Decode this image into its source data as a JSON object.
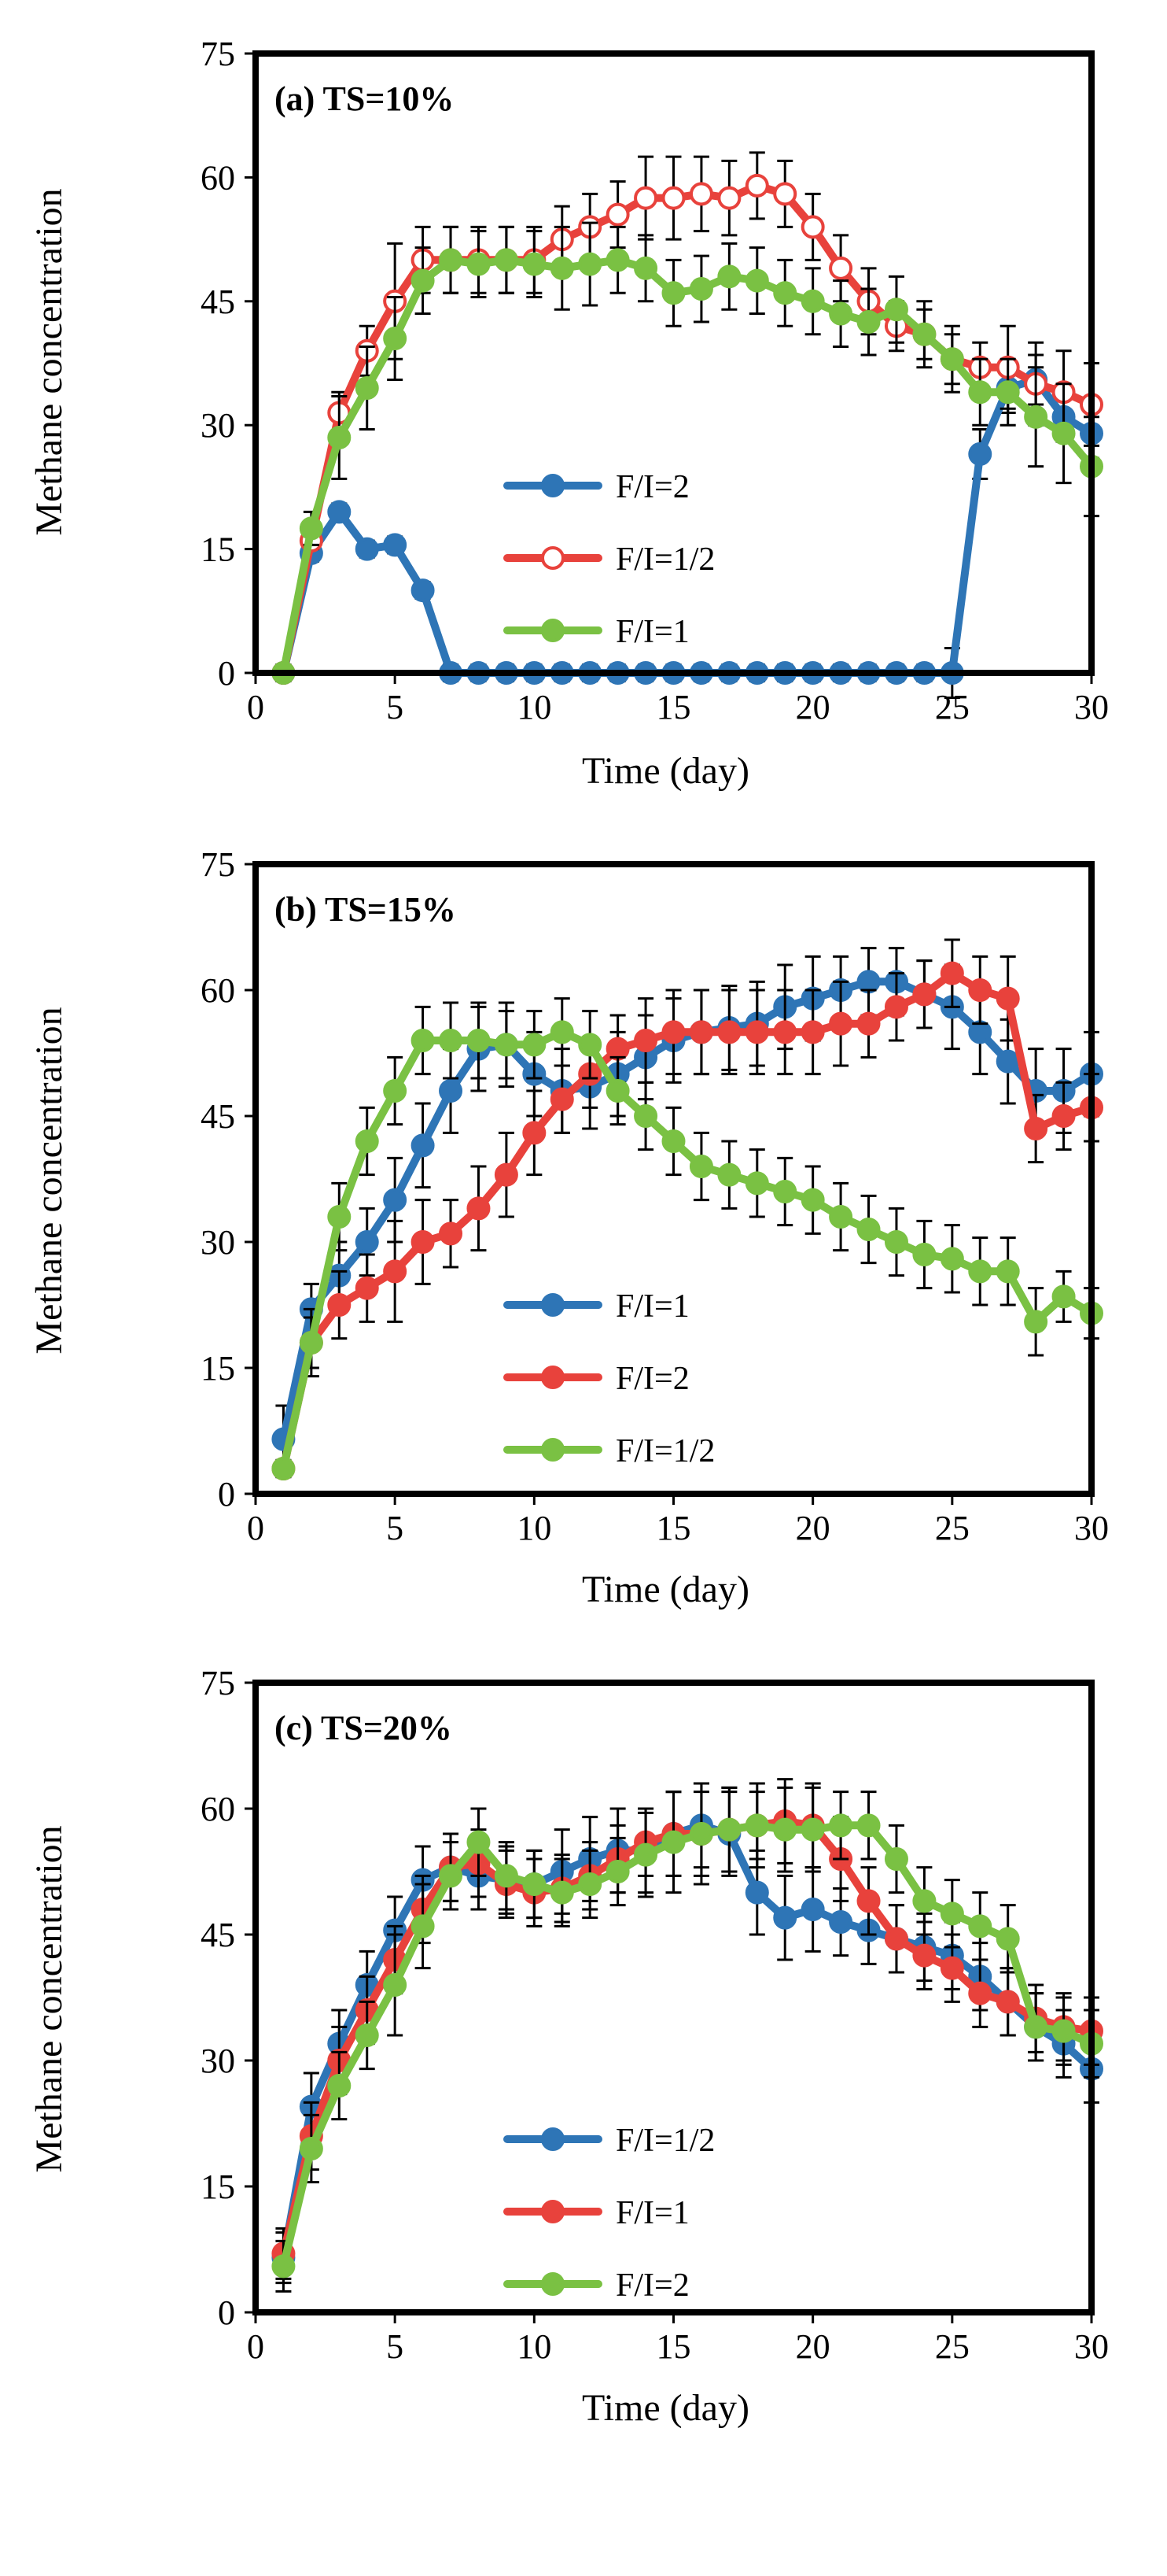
{
  "figure": {
    "ylabel": "Methane concentration",
    "xlabel": "Time (day)"
  },
  "chart_data": [
    {
      "type": "line",
      "title": "(a) TS=10%",
      "xlabel": "Time (day)",
      "ylabel": "Methane concentration",
      "xlim": [
        0,
        30
      ],
      "ylim": [
        0,
        75
      ],
      "xticks": [
        0,
        5,
        10,
        15,
        20,
        25,
        30
      ],
      "yticks": [
        0,
        15,
        30,
        45,
        60,
        75
      ],
      "legend_position": "center",
      "series": [
        {
          "name": "F/I=2",
          "color": "#2e75b6",
          "marker": "filled",
          "x": [
            1,
            2,
            3,
            4,
            5,
            6,
            7,
            8,
            9,
            10,
            11,
            12,
            13,
            14,
            15,
            16,
            17,
            18,
            19,
            20,
            21,
            22,
            23,
            24,
            25,
            26,
            27,
            28,
            29,
            30
          ],
          "values": [
            0,
            14.5,
            19.5,
            15,
            15.5,
            10,
            0,
            0,
            0,
            0,
            0,
            0,
            0,
            0,
            0,
            0,
            0,
            0,
            0,
            0,
            0,
            0,
            0,
            0,
            0,
            26.5,
            34.5,
            35.5,
            31,
            29
          ],
          "errors": [
            1,
            1,
            1,
            1,
            1,
            1,
            1,
            1,
            1,
            1,
            1,
            1,
            1,
            1,
            1,
            1,
            1,
            1,
            1,
            1,
            1,
            1,
            1,
            1,
            3,
            3,
            3,
            3,
            3,
            3
          ]
        },
        {
          "name": "F/I=1/2",
          "color": "#e8423c",
          "marker": "open",
          "x": [
            1,
            2,
            3,
            4,
            5,
            6,
            7,
            8,
            9,
            10,
            11,
            12,
            13,
            14,
            15,
            16,
            17,
            18,
            19,
            20,
            21,
            22,
            23,
            24,
            25,
            26,
            27,
            28,
            29,
            30
          ],
          "values": [
            0,
            16,
            31.5,
            39,
            45,
            50,
            50,
            50,
            50,
            50,
            52.5,
            54,
            55.5,
            57.5,
            57.5,
            58,
            57.5,
            59,
            58,
            54,
            49,
            45,
            42,
            41,
            38,
            37,
            37,
            35,
            34,
            32.5
          ],
          "errors": [
            1,
            1,
            2.5,
            3,
            7,
            4,
            4,
            4,
            4,
            4,
            4,
            4,
            4,
            5,
            5,
            4.5,
            4.5,
            4,
            4,
            4,
            4,
            4,
            3,
            3,
            3,
            3,
            5,
            5,
            5,
            5
          ]
        },
        {
          "name": "F/I=1",
          "color": "#7ac143",
          "marker": "filled",
          "x": [
            1,
            2,
            3,
            4,
            5,
            6,
            7,
            8,
            9,
            10,
            11,
            12,
            13,
            14,
            15,
            16,
            17,
            18,
            19,
            20,
            21,
            22,
            23,
            24,
            25,
            26,
            27,
            28,
            29,
            30
          ],
          "values": [
            0,
            17.5,
            28.5,
            34.5,
            40.5,
            47.5,
            50,
            49.5,
            50,
            49.5,
            49,
            49.5,
            50,
            49,
            46,
            46.5,
            48,
            47.5,
            46,
            45,
            43.5,
            42.5,
            44,
            41,
            38,
            34,
            34,
            31,
            29,
            25
          ],
          "errors": [
            1,
            2,
            5,
            5,
            5,
            4,
            4,
            4,
            4,
            4,
            5,
            5,
            4,
            4,
            4,
            4,
            4,
            4,
            4,
            4,
            4,
            4,
            4,
            4,
            4,
            4,
            4,
            6,
            6,
            6
          ]
        }
      ]
    },
    {
      "type": "line",
      "title": "(b) TS=15%",
      "xlabel": "Time (day)",
      "ylabel": "Methane concentration",
      "xlim": [
        0,
        30
      ],
      "ylim": [
        0,
        75
      ],
      "xticks": [
        0,
        5,
        10,
        15,
        20,
        25,
        30
      ],
      "yticks": [
        0,
        15,
        30,
        45,
        60,
        75
      ],
      "legend_position": "center",
      "series": [
        {
          "name": "F/I=1",
          "color": "#2e75b6",
          "marker": "filled",
          "x": [
            1,
            2,
            3,
            4,
            5,
            6,
            7,
            8,
            9,
            10,
            11,
            12,
            13,
            14,
            15,
            16,
            17,
            18,
            19,
            20,
            21,
            22,
            23,
            24,
            25,
            26,
            27,
            28,
            29,
            30
          ],
          "values": [
            6.5,
            22,
            26,
            30,
            35,
            41.5,
            48,
            53,
            53.5,
            50,
            48,
            48.5,
            50,
            52,
            54,
            55,
            55.5,
            56,
            58,
            59,
            60,
            61,
            61,
            59.5,
            58,
            55,
            51.5,
            48,
            48,
            50
          ],
          "errors": [
            4,
            3,
            4,
            4,
            5,
            5,
            5,
            5,
            5,
            5,
            5,
            5,
            5,
            5,
            5,
            5,
            5,
            5,
            5,
            5,
            4,
            4,
            4,
            4,
            5,
            5,
            5,
            5,
            5,
            5
          ]
        },
        {
          "name": "F/I=2",
          "color": "#e8423c",
          "marker": "filled",
          "x": [
            1,
            2,
            3,
            4,
            5,
            6,
            7,
            8,
            9,
            10,
            11,
            12,
            13,
            14,
            15,
            16,
            17,
            18,
            19,
            20,
            21,
            22,
            23,
            24,
            25,
            26,
            27,
            28,
            29,
            30
          ],
          "values": [
            3,
            18,
            22.5,
            24.5,
            26.5,
            30,
            31,
            34,
            38,
            43,
            47,
            50,
            53,
            54,
            55,
            55,
            55,
            55,
            55,
            55,
            56,
            56,
            58,
            59.5,
            62,
            60,
            59,
            43.5,
            45,
            46
          ],
          "errors": [
            1,
            4,
            4,
            4,
            6,
            5,
            4,
            5,
            5,
            5,
            4,
            4,
            4,
            5,
            5,
            5,
            5,
            5,
            5,
            5,
            5,
            4,
            4,
            4,
            4,
            4,
            5,
            4,
            4,
            4
          ]
        },
        {
          "name": "F/I=1/2",
          "color": "#7ac143",
          "marker": "filled",
          "x": [
            1,
            2,
            3,
            4,
            5,
            6,
            7,
            8,
            9,
            10,
            11,
            12,
            13,
            14,
            15,
            16,
            17,
            18,
            19,
            20,
            21,
            22,
            23,
            24,
            25,
            26,
            27,
            28,
            29,
            30
          ],
          "values": [
            3,
            18,
            33,
            42,
            48,
            54,
            54,
            54,
            53.5,
            53.5,
            55,
            53.5,
            48,
            45,
            42,
            39,
            38,
            37,
            36,
            35,
            33,
            31.5,
            30,
            28.5,
            28,
            26.5,
            26.5,
            20.5,
            23.5,
            21.5
          ],
          "errors": [
            1,
            3,
            4,
            4,
            4,
            4,
            4.5,
            4.5,
            4,
            4,
            4,
            4,
            4,
            4,
            4,
            4,
            4,
            4,
            4,
            4,
            4,
            4,
            4,
            4,
            4,
            4,
            4,
            4,
            3,
            3
          ]
        }
      ]
    },
    {
      "type": "line",
      "title": "(c) TS=20%",
      "xlabel": "Time (day)",
      "ylabel": "Methane concentration",
      "xlim": [
        0,
        30
      ],
      "ylim": [
        0,
        75
      ],
      "xticks": [
        0,
        5,
        10,
        15,
        20,
        25,
        30
      ],
      "yticks": [
        0,
        15,
        30,
        45,
        60,
        75
      ],
      "legend_position": "bottom-center",
      "series": [
        {
          "name": "F/I=1/2",
          "color": "#2e75b6",
          "marker": "filled",
          "x": [
            1,
            2,
            3,
            4,
            5,
            6,
            7,
            8,
            9,
            10,
            11,
            12,
            13,
            14,
            15,
            16,
            17,
            18,
            19,
            20,
            21,
            22,
            23,
            24,
            25,
            26,
            27,
            28,
            29,
            30
          ],
          "values": [
            6.5,
            24.5,
            32,
            39,
            45.5,
            51.5,
            53,
            52,
            51.5,
            51,
            52.5,
            54,
            55,
            55,
            57,
            58,
            57,
            50,
            47,
            48,
            46.5,
            45.5,
            44.5,
            43.5,
            42.5,
            40,
            37,
            34,
            32,
            29
          ],
          "errors": [
            3,
            4,
            4,
            4,
            4,
            4,
            4,
            4,
            4,
            4,
            5,
            5,
            5,
            5,
            5,
            5,
            5,
            5,
            5,
            5,
            4,
            4,
            4,
            4,
            4,
            4,
            4,
            4,
            4,
            4
          ]
        },
        {
          "name": "F/I=1",
          "color": "#e8423c",
          "marker": "filled",
          "x": [
            1,
            2,
            3,
            4,
            5,
            6,
            7,
            8,
            9,
            10,
            11,
            12,
            13,
            14,
            15,
            16,
            17,
            18,
            19,
            20,
            21,
            22,
            23,
            24,
            25,
            26,
            27,
            28,
            29,
            30
          ],
          "values": [
            7,
            21,
            30,
            36,
            42,
            48,
            53,
            53.5,
            51,
            50,
            50.5,
            52,
            54,
            56,
            57,
            57,
            57.5,
            58,
            58.5,
            58,
            54,
            49,
            44.5,
            42.5,
            41,
            38,
            37,
            35,
            34,
            33.5
          ],
          "errors": [
            3,
            4,
            4,
            4,
            4,
            4,
            4,
            4,
            4,
            4,
            4,
            4,
            4,
            4,
            5,
            5,
            5,
            5,
            5,
            5,
            5,
            4,
            4,
            4,
            4,
            4,
            4,
            4,
            4,
            4
          ]
        },
        {
          "name": "F/I=2",
          "color": "#7ac143",
          "marker": "filled",
          "x": [
            1,
            2,
            3,
            4,
            5,
            6,
            7,
            8,
            9,
            10,
            11,
            12,
            13,
            14,
            15,
            16,
            17,
            18,
            19,
            20,
            21,
            22,
            23,
            24,
            25,
            26,
            27,
            28,
            29,
            30
          ],
          "values": [
            5.5,
            19.5,
            27,
            33,
            39,
            46,
            52,
            56,
            52,
            51,
            50,
            51,
            52.5,
            54.5,
            56,
            57,
            57.5,
            58,
            57.5,
            57.5,
            58,
            58,
            54,
            49,
            47.5,
            46,
            44.5,
            34,
            33.5,
            32
          ],
          "errors": [
            3,
            4,
            4,
            4,
            6,
            5,
            4,
            4,
            4,
            4,
            4,
            4,
            4,
            5,
            6,
            6,
            5,
            4,
            5,
            5,
            4,
            4,
            4,
            4,
            4,
            4,
            4,
            4,
            4,
            4
          ]
        }
      ]
    }
  ]
}
